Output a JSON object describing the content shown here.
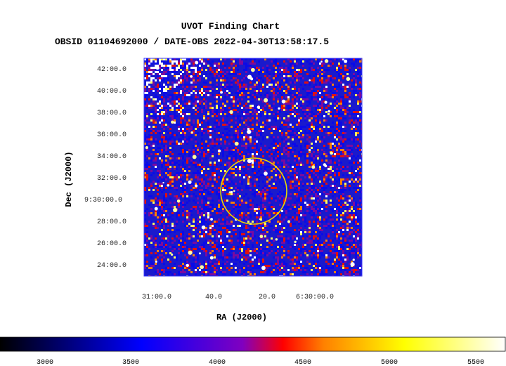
{
  "chart_data": {
    "type": "heatmap",
    "title": "UVOT Finding Chart",
    "subtitle": "OBSID 01104692000 / DATE-OBS 2022-04-30T13:58:17.5",
    "xlabel": "RA (J2000)",
    "ylabel": "Dec (J2000)",
    "x_ticks": [
      "31:00.0",
      "40.0",
      "20.0",
      "6:30:00.0"
    ],
    "y_ticks": [
      "42:00.0",
      "40:00.0",
      "38:00.0",
      "36:00.0",
      "34:00.0",
      "32:00.0",
      "9:30:00.0",
      "28:00.0",
      "26:00.0",
      "24:00.0"
    ],
    "colorbar": {
      "ticks": [
        "3000",
        "3500",
        "4000",
        "4500",
        "5000",
        "5500"
      ],
      "range": [
        2750,
        5700
      ],
      "colormap": [
        "#000000",
        "#0000ff",
        "#ff0000",
        "#ffff00",
        "#ffffff"
      ]
    },
    "marker": {
      "shape": "circle",
      "color": "#e8d800"
    },
    "frame_color": "#3333ff",
    "background_color": "#1a1acc"
  }
}
